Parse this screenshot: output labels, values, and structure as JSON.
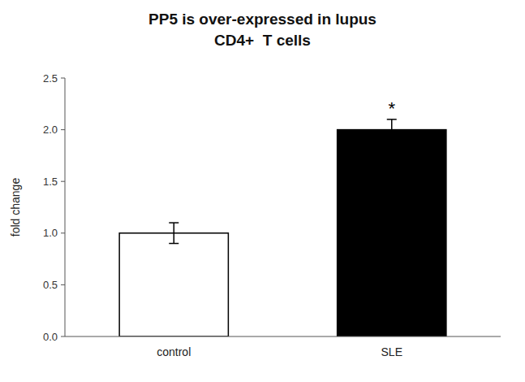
{
  "chart_data": {
    "type": "bar",
    "title": "PP5 is over-expressed in lupus",
    "subtitle": "CD4+  T cells",
    "categories": [
      "control",
      "SLE"
    ],
    "values": [
      1.0,
      2.0
    ],
    "errors": [
      0.1,
      0.1
    ],
    "colors": [
      "#ffffff",
      "#000000"
    ],
    "y_label": "fold change",
    "ylim": [
      0,
      2.5
    ],
    "yticks": [
      {
        "value": 0,
        "label": "0.0"
      },
      0.5,
      {
        "value": 1.0,
        "label": "1.0"
      },
      1.5,
      {
        "value": 2.0,
        "label": "2.0"
      },
      2.5
    ],
    "annotations": [
      {
        "category": "SLE",
        "text": "*"
      }
    ],
    "grid": false
  }
}
